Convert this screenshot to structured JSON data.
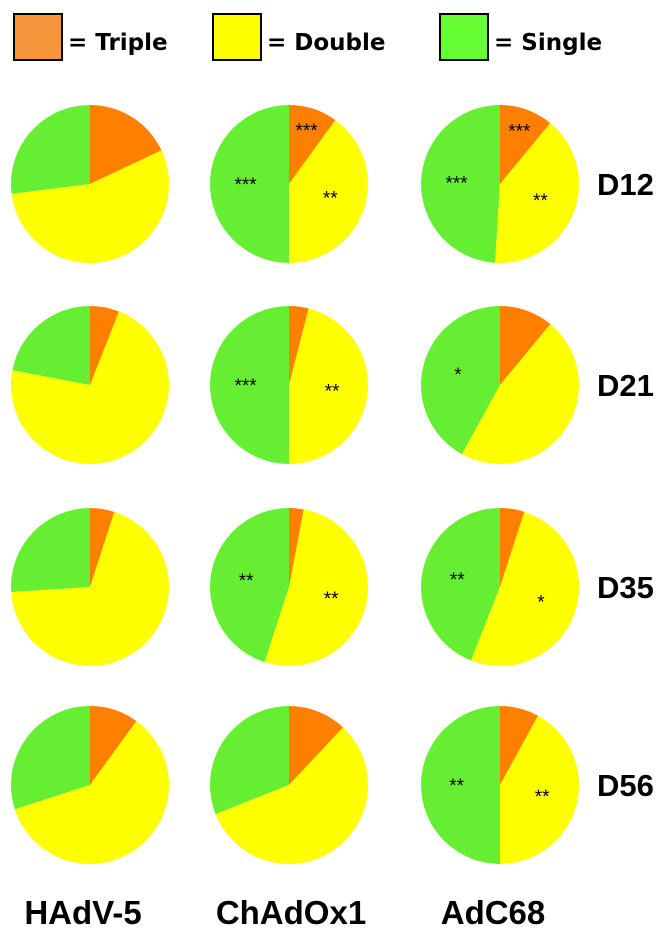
{
  "chart_data": {
    "type": "pie",
    "legend": [
      {
        "label": "= Triple",
        "color": "#f7953b"
      },
      {
        "label": "= Double",
        "color": "#ffff00"
      },
      {
        "label": "= Single",
        "color": "#66ff33"
      }
    ],
    "slice_colors": {
      "triple": "#ff8000",
      "double": "#ffff00",
      "single": "#66ee33"
    },
    "legend_placement": "top",
    "columns": [
      "HAdV-5",
      "ChAdOx1",
      "AdC68"
    ],
    "rows": [
      "D12",
      "D21",
      "D35",
      "D56"
    ],
    "series_order": [
      "Triple",
      "Double",
      "Single"
    ],
    "pies": [
      [
        {
          "values": [
            18,
            55,
            27
          ],
          "labels": [
            "",
            "",
            ""
          ]
        },
        {
          "values": [
            10,
            40,
            50
          ],
          "labels": [
            "***",
            "**",
            "***"
          ]
        },
        {
          "values": [
            11,
            40,
            49
          ],
          "labels": [
            "***",
            "**",
            "***"
          ]
        }
      ],
      [
        {
          "values": [
            6,
            72,
            22
          ],
          "labels": [
            "",
            "",
            ""
          ]
        },
        {
          "values": [
            4,
            46,
            50
          ],
          "labels": [
            "",
            "**",
            "***"
          ]
        },
        {
          "values": [
            11,
            47,
            42
          ],
          "labels": [
            "",
            "",
            "*"
          ]
        }
      ],
      [
        {
          "values": [
            5,
            69,
            26
          ],
          "labels": [
            "",
            "",
            ""
          ]
        },
        {
          "values": [
            3,
            52,
            45
          ],
          "labels": [
            "",
            "**",
            "**"
          ]
        },
        {
          "values": [
            5,
            51,
            44
          ],
          "labels": [
            "",
            "*",
            "**"
          ]
        }
      ],
      [
        {
          "values": [
            10,
            60,
            30
          ],
          "labels": [
            "",
            "",
            ""
          ]
        },
        {
          "values": [
            12,
            57,
            31
          ],
          "labels": [
            "",
            "",
            ""
          ]
        },
        {
          "values": [
            8,
            42,
            50
          ],
          "labels": [
            "",
            "**",
            "**"
          ]
        }
      ]
    ]
  }
}
